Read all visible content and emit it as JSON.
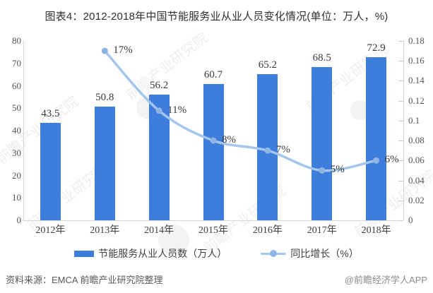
{
  "title": "图表4：2012-2018年中国节能服务业从业人员变化情况(单位：万人，%)",
  "watermark": {
    "text": "前瞻产业研究院"
  },
  "chart_data": {
    "type": "bar",
    "categories": [
      "2012年",
      "2013年",
      "2014年",
      "2015年",
      "2016年",
      "2017年",
      "2018年"
    ],
    "series": [
      {
        "name": "节能服务从业人员数（万人）",
        "type": "bar",
        "axis": "left",
        "color": "#3e7ddb",
        "values": [
          43.5,
          50.8,
          56.2,
          60.7,
          65.2,
          68.5,
          72.9
        ],
        "point_labels": [
          "43.5",
          "50.8",
          "56.2",
          "60.7",
          "65.2",
          "68.5",
          "72.9"
        ]
      },
      {
        "name": "同比增长（%）",
        "type": "line",
        "axis": "right",
        "color": "#a4c6ec",
        "marker_color": "#8fb5e4",
        "values": [
          null,
          0.17,
          0.11,
          0.08,
          0.07,
          0.05,
          0.06
        ],
        "point_labels": [
          "",
          "17%",
          "11%",
          "8%",
          "7%",
          "5%",
          "6%"
        ]
      }
    ],
    "left_axis": {
      "min": 0,
      "max": 80,
      "ticks": [
        "0",
        "10",
        "20",
        "30",
        "40",
        "50",
        "60",
        "70",
        "80"
      ]
    },
    "right_axis": {
      "min": 0,
      "max": 0.18,
      "ticks": [
        "0",
        "0.02",
        "0.04",
        "0.06",
        "0.08",
        "0.1",
        "0.12",
        "0.14",
        "0.16",
        "0.18"
      ]
    },
    "grid": false,
    "legend_position": "bottom"
  },
  "footer": {
    "source": "资料来源：EMCA 前瞻产业研究院整理",
    "brand": "@前瞻经济学人APP"
  }
}
